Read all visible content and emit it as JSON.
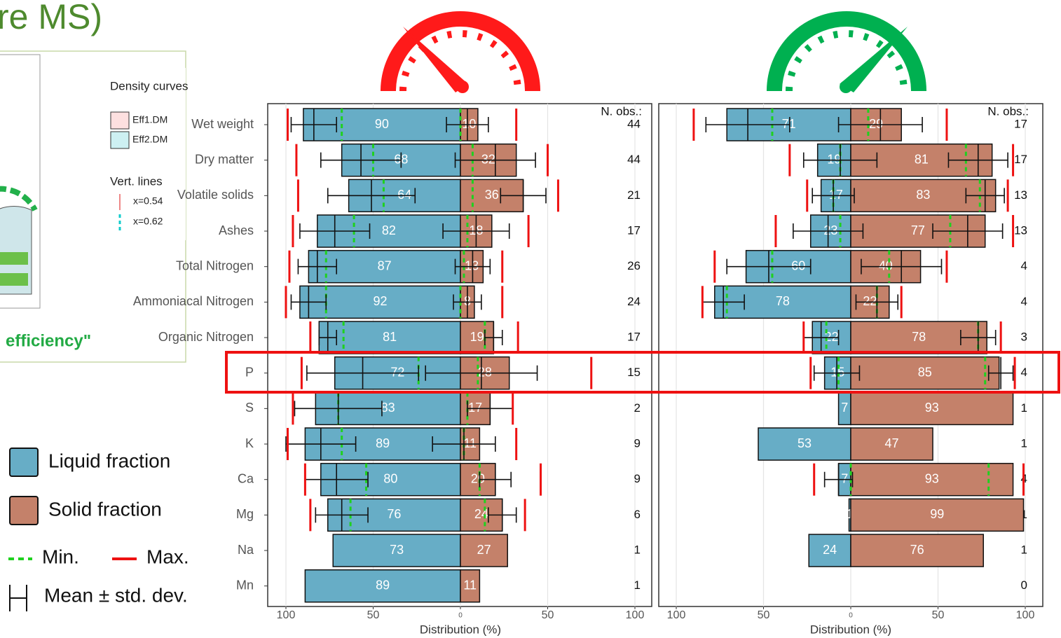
{
  "slide": {
    "title": "re MS)",
    "inset": {
      "legend_title": "Density curves",
      "items": [
        "Eff1.DM",
        "Eff2.DM"
      ],
      "lines_title": "Vert. lines",
      "lines": [
        "x=0.54",
        "x=0.62"
      ],
      "caption": "efficiency\""
    }
  },
  "chart_data": [
    {
      "type": "diverging-bar",
      "xlabel": "Distribution (%)",
      "xlim": [
        -100,
        100
      ],
      "xticks": [
        {
          "value": -100,
          "label": "100"
        },
        {
          "value": -50,
          "label": "50"
        },
        0,
        50,
        100
      ],
      "grid": true,
      "categories": [
        "Wet weight",
        "Dry matter",
        "Volatile solids",
        "Ashes",
        "Total Nitrogen",
        "Ammoniacal Nitrogen",
        "Organic Nitrogen",
        "P",
        "S",
        "K",
        "Ca",
        "Mg",
        "Na",
        "Mn"
      ],
      "count_label": "N. obs.:",
      "counts": [
        44,
        44,
        21,
        17,
        26,
        24,
        17,
        15,
        2,
        9,
        9,
        6,
        1,
        1
      ],
      "series": [
        {
          "name": "Liquid fraction",
          "color": "#67adc6",
          "side": "left",
          "values": [
            90,
            68,
            64,
            82,
            87,
            92,
            81,
            72,
            83,
            89,
            80,
            76,
            73,
            89
          ]
        },
        {
          "name": "Solid fraction",
          "color": "#c4816a",
          "side": "right",
          "values": [
            10,
            32,
            36,
            18,
            13,
            8,
            19,
            28,
            17,
            11,
            20,
            24,
            27,
            11
          ]
        }
      ],
      "min": {
        "name": "Min.",
        "color": "#1fd11f",
        "liquid": [
          68,
          50,
          44,
          61,
          77,
          77,
          67,
          24,
          70,
          68,
          54,
          63,
          null,
          null
        ],
        "solid": [
          0,
          7,
          7,
          4,
          2,
          0,
          14,
          10,
          4,
          2,
          11,
          14,
          null,
          null
        ]
      },
      "max": {
        "name": "Max.",
        "color": "#ee1111",
        "liquid": [
          99,
          94,
          93,
          96,
          98,
          100,
          86,
          91,
          96,
          99,
          89,
          86,
          null,
          null
        ],
        "solid": [
          32,
          50,
          56,
          39,
          24,
          24,
          33,
          75,
          30,
          32,
          46,
          37,
          null,
          null
        ]
      },
      "mean_sd": {
        "name": "Mean ± std. dev.",
        "liquid_mean": [
          84,
          57,
          51,
          72,
          82,
          87,
          76,
          56,
          70,
          80,
          71,
          68,
          null,
          null
        ],
        "liquid_sd": [
          13,
          23,
          25,
          20,
          11,
          10,
          5,
          32,
          25,
          20,
          18,
          15,
          null,
          null
        ],
        "solid_mean": [
          4,
          20,
          36,
          9,
          7,
          4,
          19,
          12,
          17,
          2,
          20,
          24,
          null,
          null
        ],
        "solid_sd": [
          12,
          23,
          13,
          19,
          10,
          8,
          5,
          32,
          13,
          18,
          9,
          8,
          null,
          null
        ]
      }
    },
    {
      "type": "diverging-bar",
      "xlabel": "Distribution (%)",
      "xlim": [
        -100,
        100
      ],
      "xticks": [
        {
          "value": -100,
          "label": "100"
        },
        {
          "value": -50,
          "label": "50"
        },
        0,
        50,
        100
      ],
      "grid": true,
      "count_label": "N. obs.:",
      "counts": [
        17,
        17,
        13,
        13,
        4,
        4,
        3,
        4,
        1,
        1,
        4,
        1,
        1,
        0
      ],
      "series": [
        {
          "color": "#67adc6",
          "side": "left",
          "values": [
            71,
            19,
            17,
            23,
            60,
            78,
            22,
            15,
            7,
            53,
            7,
            1,
            24,
            null
          ]
        },
        {
          "color": "#c4816a",
          "side": "right",
          "values": [
            29,
            81,
            83,
            77,
            40,
            22,
            78,
            85,
            93,
            47,
            93,
            99,
            76,
            null
          ]
        }
      ],
      "min": {
        "color": "#1fd11f",
        "liquid": [
          45,
          6,
          10,
          6,
          45,
          71,
          14,
          7,
          null,
          null,
          0,
          null,
          null,
          null
        ],
        "solid": [
          10,
          66,
          74,
          57,
          22,
          15,
          73,
          77,
          null,
          null,
          79,
          null,
          null,
          null
        ]
      },
      "max": {
        "color": "#ee1111",
        "liquid": [
          90,
          35,
          25,
          43,
          78,
          85,
          27,
          23,
          null,
          null,
          21,
          null,
          null,
          null
        ],
        "solid": [
          55,
          93,
          90,
          93,
          55,
          29,
          86,
          94,
          null,
          null,
          99,
          null,
          null,
          null
        ]
      },
      "mean_sd": {
        "liquid_mean": [
          59,
          6,
          10,
          13,
          47,
          73,
          17,
          8,
          null,
          null,
          7,
          null,
          null,
          null
        ],
        "liquid_sd": [
          24,
          21,
          12,
          20,
          24,
          12,
          10,
          13,
          null,
          null,
          8,
          null,
          null,
          null
        ],
        "solid_mean": [
          17,
          73,
          77,
          67,
          29,
          15,
          73,
          86,
          null,
          null,
          null,
          null,
          null,
          null
        ],
        "solid_sd": [
          24,
          17,
          11,
          20,
          23,
          12,
          10,
          7,
          null,
          null,
          null,
          null,
          null,
          null
        ]
      }
    }
  ]
}
